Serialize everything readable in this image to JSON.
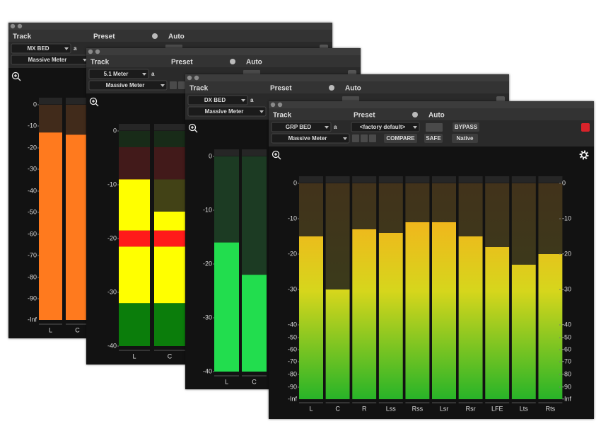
{
  "windows": [
    {
      "track_label": "Track",
      "track": "MX BED",
      "track_sub": "a",
      "preset_label": "Preset",
      "auto_label": "Auto",
      "plugin": "Massive Meter",
      "meter": {
        "scale": [
          0,
          -10,
          -20,
          -30,
          -40,
          -50,
          -60,
          -70,
          -80,
          -90,
          "-Inf"
        ],
        "channels": [
          "L",
          "C"
        ],
        "values": [
          -13,
          -14
        ],
        "color": "#ff7a1e"
      }
    },
    {
      "track_label": "Track",
      "track": "5.1 Meter",
      "track_sub": "a",
      "preset_label": "Preset",
      "auto_label": "Auto",
      "plugin": "Massive Meter",
      "meter": {
        "scale": [
          0,
          -10,
          -20,
          -30,
          -40
        ],
        "channels": [
          "L",
          "C"
        ],
        "values": [
          -9,
          -15
        ],
        "zones": [
          {
            "from": -40,
            "to": -32,
            "color": "#0b7d0b"
          },
          {
            "from": -32,
            "to": -21.5,
            "color": "#ffff00"
          },
          {
            "from": -21.5,
            "to": -18.5,
            "color": "#ff1a1a"
          },
          {
            "from": -18.5,
            "to": -9,
            "color": "#ffff00"
          },
          {
            "from": -9,
            "to": -3,
            "color": "#ff1a1a"
          },
          {
            "from": -3,
            "to": 0,
            "color": "#0b7d0b"
          }
        ]
      }
    },
    {
      "track_label": "Track",
      "track": "DX BED",
      "track_sub": "a",
      "preset_label": "Preset",
      "auto_label": "Auto",
      "plugin": "Massive Meter",
      "meter": {
        "scale": [
          0,
          -10,
          -20,
          -30,
          -40
        ],
        "channels": [
          "L",
          "C"
        ],
        "values": [
          -16,
          -22
        ],
        "color": "#22dd4e"
      }
    },
    {
      "track_label": "Track",
      "track": "GRP BED",
      "track_sub": "a",
      "preset_label": "Preset",
      "preset": "<factory default>",
      "auto_label": "Auto",
      "plugin": "Massive Meter",
      "buttons": [
        "BYPASS",
        "COMPARE",
        "SAFE",
        "Native"
      ],
      "meter": {
        "scale": [
          0,
          -10,
          -20,
          -30,
          -40,
          -50,
          -60,
          -70,
          -80,
          -90,
          "-Inf"
        ],
        "channels": [
          "L",
          "C",
          "R",
          "Lss",
          "Rss",
          "Lsr",
          "Rsr",
          "LFE",
          "Lts",
          "Rts"
        ],
        "values": [
          -15,
          -30,
          -13,
          -14,
          -11,
          -11,
          -15,
          -18,
          -23,
          -20
        ],
        "gradient": [
          "#ffa51c",
          "#d6d61c",
          "#28b428"
        ],
        "right_scale": true
      }
    }
  ]
}
